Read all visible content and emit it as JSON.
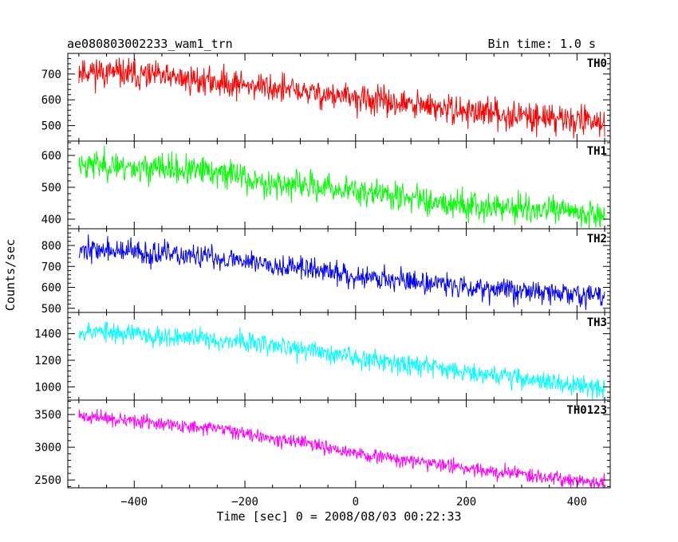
{
  "header": {
    "title": "ae080803002233_wam1_trn",
    "bin_time": "Bin time: 1.0 s"
  },
  "chart_data": {
    "type": "line",
    "xlabel": "Time [sec] 0 = 2008/08/03 00:22:33",
    "ylabel": "Counts/sec",
    "xlim": [
      -520,
      460
    ],
    "x_range_data": [
      -500,
      450
    ],
    "x_ticks": [
      -400,
      -200,
      0,
      200,
      400
    ],
    "x_tick_labels": [
      "−400",
      "−200",
      "0",
      "200",
      "400"
    ],
    "grid": false,
    "panels": [
      {
        "name": "TH0",
        "color": "#ff0000",
        "ylim": [
          440,
          780
        ],
        "y_ticks": [
          500,
          600,
          700
        ],
        "trend": {
          "x": [
            -500,
            -200,
            0,
            200,
            450
          ],
          "y": [
            715,
            660,
            605,
            555,
            515
          ]
        },
        "noise": 40,
        "seed": 11
      },
      {
        "name": "TH1",
        "color": "#00ff00",
        "ylim": [
          370,
          645
        ],
        "y_ticks": [
          400,
          500,
          600
        ],
        "trend": {
          "x": [
            -500,
            -202,
            -198,
            0,
            200,
            450
          ],
          "y": [
            575,
            540,
            520,
            490,
            445,
            415
          ]
        },
        "noise": 32,
        "seed": 23
      },
      {
        "name": "TH2",
        "color": "#0000ff",
        "ylim": [
          480,
          880
        ],
        "y_ticks": [
          500,
          600,
          700,
          800
        ],
        "trend": {
          "x": [
            -500,
            -200,
            0,
            200,
            450
          ],
          "y": [
            785,
            730,
            655,
            605,
            555
          ]
        },
        "noise": 40,
        "seed": 37
      },
      {
        "name": "TH3",
        "color": "#00ffff",
        "ylim": [
          900,
          1560
        ],
        "y_ticks": [
          1000,
          1200,
          1400
        ],
        "trend": {
          "x": [
            -500,
            -200,
            0,
            200,
            450
          ],
          "y": [
            1425,
            1340,
            1225,
            1120,
            980
          ]
        },
        "noise": 55,
        "seed": 53
      },
      {
        "name": "TH0123",
        "color": "#ff00ff",
        "ylim": [
          2380,
          3720
        ],
        "y_ticks": [
          2500,
          3000,
          3500
        ],
        "trend": {
          "x": [
            -500,
            -200,
            0,
            200,
            450
          ],
          "y": [
            3480,
            3230,
            2900,
            2680,
            2450
          ]
        },
        "noise": 75,
        "seed": 71
      }
    ]
  }
}
